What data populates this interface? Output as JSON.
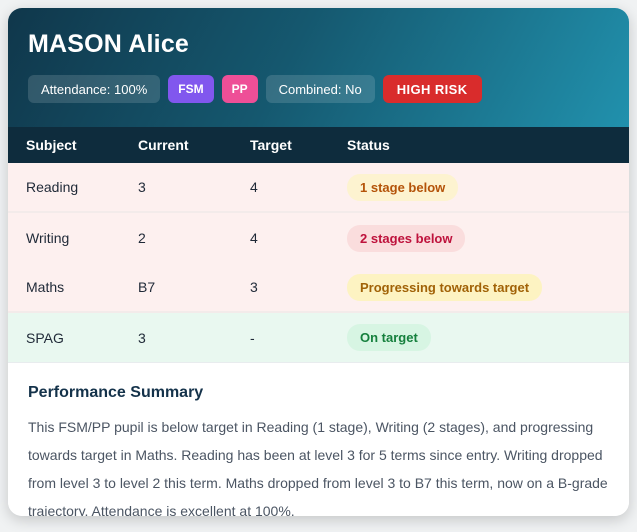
{
  "student": {
    "name": "MASON Alice"
  },
  "badges": {
    "attendance": "Attendance: 100%",
    "fsm": "FSM",
    "pp": "PP",
    "combined": "Combined: No",
    "risk": "HIGH RISK"
  },
  "table": {
    "headers": [
      "Subject",
      "Current",
      "Target",
      "Status"
    ],
    "rows": [
      {
        "subject": "Reading",
        "current": "3",
        "target": "4",
        "status": "1 stage below"
      },
      {
        "subject": "Writing",
        "current": "2",
        "target": "4",
        "status": "2 stages below"
      },
      {
        "subject": "Maths",
        "current": "B7",
        "target": "3",
        "status": "Progressing towards target"
      },
      {
        "subject": "SPAG",
        "current": "3",
        "target": "-",
        "status": "On target"
      }
    ]
  },
  "summary": {
    "title": "Performance Summary",
    "body": "This FSM/PP pupil is below target in Reading (1 stage), Writing (2 stages), and progressing towards target in Maths. Reading has been at level 3 for 5 terms since entry. Writing dropped from level 3 to level 2 this term. Maths dropped from level 3 to B7 this term, now on a B-grade trajectory. Attendance is excellent at 100%."
  },
  "colors": {
    "header_gradient_start": "#10374b",
    "header_gradient_end": "#2191ad",
    "table_header_bg": "#0e2c3d",
    "row_pink_bg": "#fdf0ef",
    "row_green_bg": "#e9f8f0",
    "badge_fsm_bg": "#8157ee",
    "badge_pp_bg": "#ee4f97",
    "badge_risk_bg": "#d92c2c",
    "status_amber_bg": "#fdf3d0",
    "status_amber_text": "#b45309",
    "status_red_bg": "#fadddd",
    "status_red_text": "#be123c",
    "status_yellow_bg": "#fdf3c2",
    "status_yellow_text": "#a16207",
    "status_green_bg": "#d7f5e3",
    "status_green_text": "#15803d"
  }
}
